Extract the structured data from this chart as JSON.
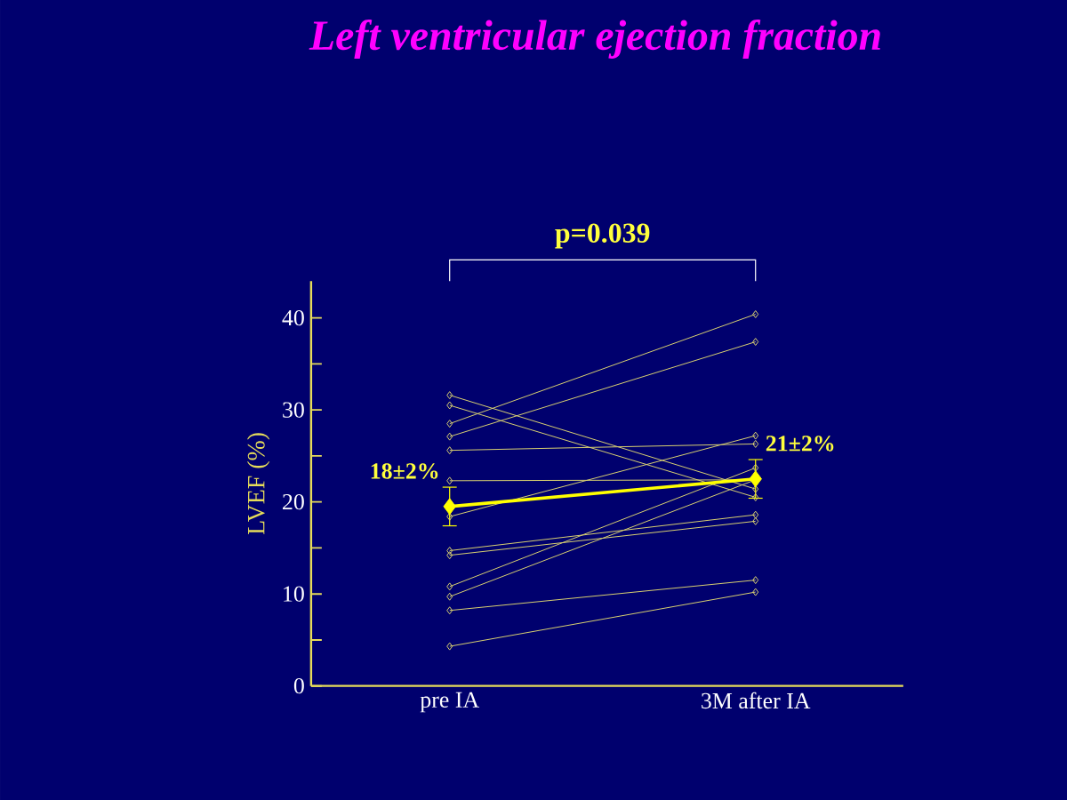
{
  "chart_data": {
    "type": "line",
    "title": "Left ventricular ejection fraction",
    "ylabel": "LVEF (%)",
    "categories": [
      "pre IA",
      "3M after IA"
    ],
    "ylim": [
      0,
      44
    ],
    "yticks": [
      0,
      {
        "value": 5,
        "label": null
      },
      10,
      {
        "value": 15,
        "label": null
      },
      20,
      {
        "value": 25,
        "label": null
      },
      30,
      {
        "value": 35,
        "label": null
      },
      40
    ],
    "marker": "diamond",
    "line_style": "solid",
    "series": [
      {
        "color": "#d8d070",
        "values": [
          31.6,
          21.4
        ]
      },
      {
        "color": "#d8d070",
        "values": [
          30.5,
          20.5
        ]
      },
      {
        "color": "#d8d070",
        "values": [
          28.5,
          40.4
        ]
      },
      {
        "color": "#d8d070",
        "values": [
          27.1,
          37.4
        ]
      },
      {
        "color": "#d8d070",
        "values": [
          25.6,
          26.3
        ]
      },
      {
        "color": "#d8d070",
        "values": [
          22.3,
          22.4
        ]
      },
      {
        "color": "#d8d070",
        "values": [
          18.4,
          27.2
        ]
      },
      {
        "color": "#d8d070",
        "values": [
          14.7,
          18.6
        ]
      },
      {
        "color": "#d8d070",
        "values": [
          14.2,
          17.9
        ]
      },
      {
        "color": "#d8d070",
        "values": [
          10.8,
          23.7
        ]
      },
      {
        "color": "#d8d070",
        "values": [
          9.7,
          22.4
        ]
      },
      {
        "color": "#d8d070",
        "values": [
          8.2,
          11.5
        ]
      },
      {
        "color": "#d8d070",
        "values": [
          4.3,
          10.2
        ]
      },
      {
        "color": "#ffff00",
        "values": [
          19.5,
          22.5
        ],
        "errors": [
          2.1,
          2.1
        ]
      }
    ],
    "annotations": [
      "p=0.039",
      {
        "text": "18±2%",
        "x": "pre IA",
        "y": 19.5
      },
      {
        "text": "21±2%",
        "x": "3M after IA",
        "y": 22.5
      }
    ]
  }
}
